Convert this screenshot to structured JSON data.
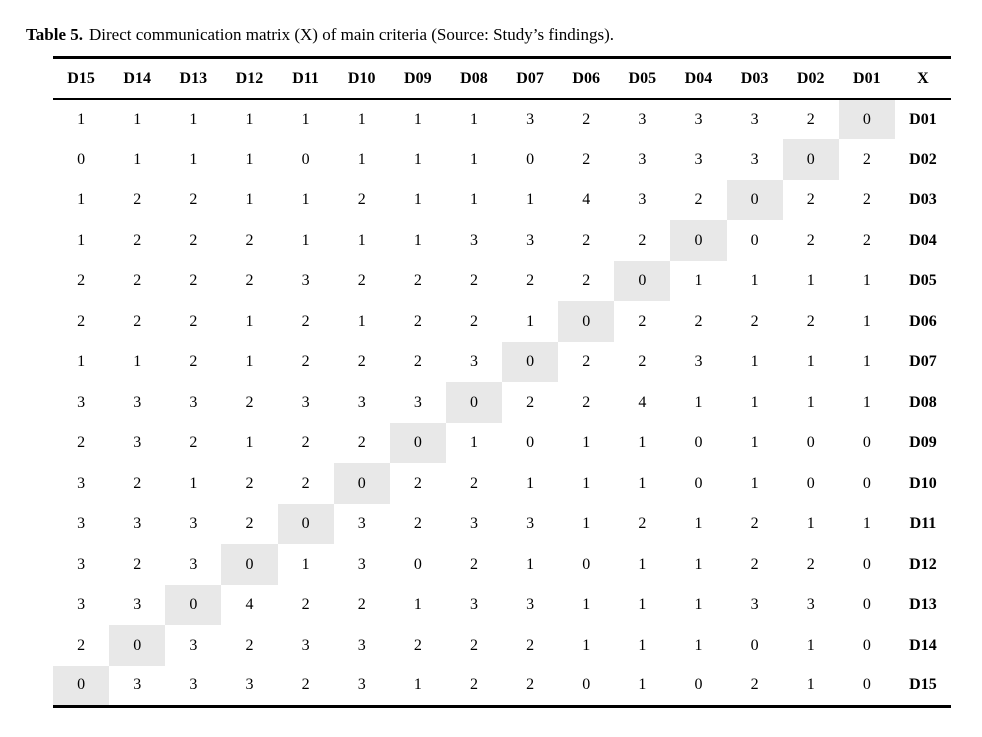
{
  "caption": {
    "label": "Table 5.",
    "text": "Direct communication matrix (X) of main criteria (Source: Study’s findings)."
  },
  "table": {
    "columns": [
      "D15",
      "D14",
      "D13",
      "D12",
      "D11",
      "D10",
      "D09",
      "D08",
      "D07",
      "D06",
      "D05",
      "D04",
      "D03",
      "D02",
      "D01",
      "X"
    ],
    "highlight_color": "#e8e8e8",
    "rows": [
      {
        "label": "D01",
        "values": [
          1,
          1,
          1,
          1,
          1,
          1,
          1,
          1,
          3,
          2,
          3,
          3,
          3,
          2,
          0
        ],
        "highlight_index": 14
      },
      {
        "label": "D02",
        "values": [
          0,
          1,
          1,
          1,
          0,
          1,
          1,
          1,
          0,
          2,
          3,
          3,
          3,
          0,
          2
        ],
        "highlight_index": 13
      },
      {
        "label": "D03",
        "values": [
          1,
          2,
          2,
          1,
          1,
          2,
          1,
          1,
          1,
          4,
          3,
          2,
          0,
          2,
          2
        ],
        "highlight_index": 12
      },
      {
        "label": "D04",
        "values": [
          1,
          2,
          2,
          2,
          1,
          1,
          1,
          3,
          3,
          2,
          2,
          0,
          0,
          2,
          2
        ],
        "highlight_index": 11
      },
      {
        "label": "D05",
        "values": [
          2,
          2,
          2,
          2,
          3,
          2,
          2,
          2,
          2,
          2,
          0,
          1,
          1,
          1,
          1
        ],
        "highlight_index": 10
      },
      {
        "label": "D06",
        "values": [
          2,
          2,
          2,
          1,
          2,
          1,
          2,
          2,
          1,
          0,
          2,
          2,
          2,
          2,
          1
        ],
        "highlight_index": 9
      },
      {
        "label": "D07",
        "values": [
          1,
          1,
          2,
          1,
          2,
          2,
          2,
          3,
          0,
          2,
          2,
          3,
          1,
          1,
          1
        ],
        "highlight_index": 8
      },
      {
        "label": "D08",
        "values": [
          3,
          3,
          3,
          2,
          3,
          3,
          3,
          0,
          2,
          2,
          4,
          1,
          1,
          1,
          1
        ],
        "highlight_index": 7
      },
      {
        "label": "D09",
        "values": [
          2,
          3,
          2,
          1,
          2,
          2,
          0,
          1,
          0,
          1,
          1,
          0,
          1,
          0,
          0
        ],
        "highlight_index": 6
      },
      {
        "label": "D10",
        "values": [
          3,
          2,
          1,
          2,
          2,
          0,
          2,
          2,
          1,
          1,
          1,
          0,
          1,
          0,
          0
        ],
        "highlight_index": 5
      },
      {
        "label": "D11",
        "values": [
          3,
          3,
          3,
          2,
          0,
          3,
          2,
          3,
          3,
          1,
          2,
          1,
          2,
          1,
          1
        ],
        "highlight_index": 4
      },
      {
        "label": "D12",
        "values": [
          3,
          2,
          3,
          0,
          1,
          3,
          0,
          2,
          1,
          0,
          1,
          1,
          2,
          2,
          0
        ],
        "highlight_index": 3
      },
      {
        "label": "D13",
        "values": [
          3,
          3,
          0,
          4,
          2,
          2,
          1,
          3,
          3,
          1,
          1,
          1,
          3,
          3,
          0
        ],
        "highlight_index": 2
      },
      {
        "label": "D14",
        "values": [
          2,
          0,
          3,
          2,
          3,
          3,
          2,
          2,
          2,
          1,
          1,
          1,
          0,
          1,
          0
        ],
        "highlight_index": 1
      },
      {
        "label": "D15",
        "values": [
          0,
          3,
          3,
          3,
          2,
          3,
          1,
          2,
          2,
          0,
          1,
          0,
          2,
          1,
          0
        ],
        "highlight_index": 0
      }
    ]
  }
}
